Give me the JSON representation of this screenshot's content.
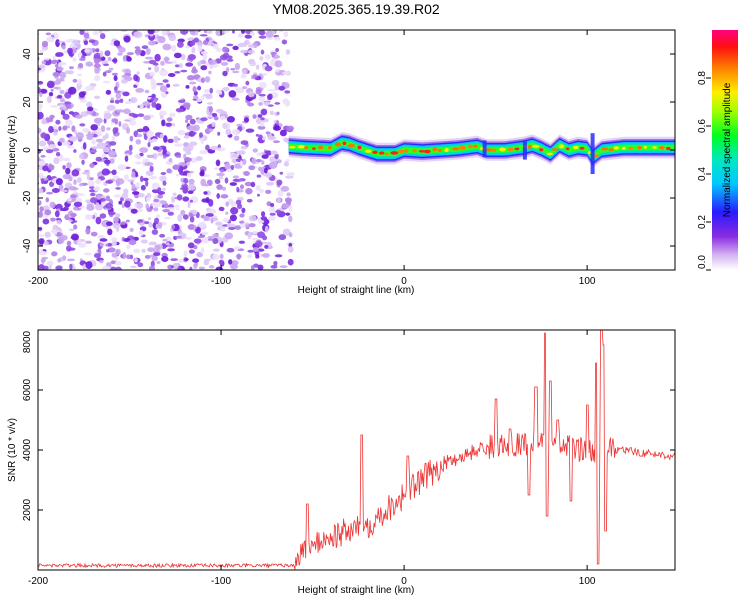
{
  "title": "YM08.2025.365.19.39.R02",
  "chart_data": [
    {
      "type": "heatmap",
      "xlabel": "Height of straight line (km)",
      "ylabel": "Frequency (Hz)",
      "xlim": [
        -200,
        148
      ],
      "ylim": [
        -50,
        50
      ],
      "x_ticks": [
        -200,
        -100,
        0,
        100
      ],
      "y_ticks": [
        40,
        20,
        0,
        -20,
        -40
      ],
      "colorbar": {
        "label": "Normalized spectral amplitude",
        "range": [
          0,
          1
        ],
        "ticks": [
          "0.0",
          "0.2",
          "0.4",
          "0.6",
          "0.8"
        ]
      },
      "noise_region_x": [
        -200,
        -63
      ],
      "signal_band": {
        "x_range": [
          -63,
          148
        ],
        "center_frequency_hz": [
          [
            -63,
            1.5
          ],
          [
            -55,
            1
          ],
          [
            -40,
            0.5
          ],
          [
            -34,
            3
          ],
          [
            -30,
            2.5
          ],
          [
            -25,
            1
          ],
          [
            -15,
            -1.5
          ],
          [
            -5,
            -1.5
          ],
          [
            0,
            0
          ],
          [
            10,
            -0.5
          ],
          [
            20,
            0
          ],
          [
            30,
            0.5
          ],
          [
            40,
            1.5
          ],
          [
            45,
            0
          ],
          [
            55,
            0
          ],
          [
            65,
            1
          ],
          [
            70,
            2
          ],
          [
            75,
            0.5
          ],
          [
            80,
            -1.5
          ],
          [
            85,
            2
          ],
          [
            90,
            0
          ],
          [
            95,
            1
          ],
          [
            100,
            0.5
          ],
          [
            103,
            -3
          ],
          [
            108,
            0
          ],
          [
            120,
            1
          ],
          [
            130,
            1
          ],
          [
            148,
            1
          ]
        ]
      }
    },
    {
      "type": "line",
      "xlabel": "Height of straight line (km)",
      "ylabel": "SNR (10 * v/v)",
      "xlim": [
        -200,
        148
      ],
      "ylim": [
        0,
        8000
      ],
      "x_ticks": [
        -200,
        -100,
        0,
        100
      ],
      "y_ticks": [
        8000,
        6000,
        4000,
        2000
      ],
      "color": "#ee3333",
      "baseline": {
        "x": [
          -200,
          -100,
          -60,
          -55,
          -40,
          -20,
          0,
          20,
          40,
          50,
          60,
          70,
          80,
          90,
          100,
          110,
          120,
          130,
          148
        ],
        "y": [
          150,
          150,
          150,
          700,
          1100,
          1500,
          2500,
          3500,
          4000,
          4150,
          4200,
          4250,
          4200,
          4100,
          4000,
          4000,
          4000,
          3900,
          3800
        ]
      },
      "spikes": [
        {
          "x": -53,
          "y": 2200
        },
        {
          "x": -23,
          "y": 4500
        },
        {
          "x": 2,
          "y": 3800
        },
        {
          "x": 50,
          "y": 5700
        },
        {
          "x": 58,
          "y": 4700
        },
        {
          "x": 72,
          "y": 6100
        },
        {
          "x": 77,
          "y": 7900
        },
        {
          "x": 80,
          "y": 6300
        },
        {
          "x": 84,
          "y": 5000
        },
        {
          "x": 100,
          "y": 5500
        },
        {
          "x": 105,
          "y": 6900
        },
        {
          "x": 108,
          "y": 8000
        },
        {
          "x": 109,
          "y": 7500
        }
      ],
      "dips": [
        {
          "x": 68,
          "y": 2500
        },
        {
          "x": 78,
          "y": 1800
        },
        {
          "x": 91,
          "y": 2300
        },
        {
          "x": 106,
          "y": 200
        },
        {
          "x": 110,
          "y": 1300
        }
      ]
    }
  ]
}
